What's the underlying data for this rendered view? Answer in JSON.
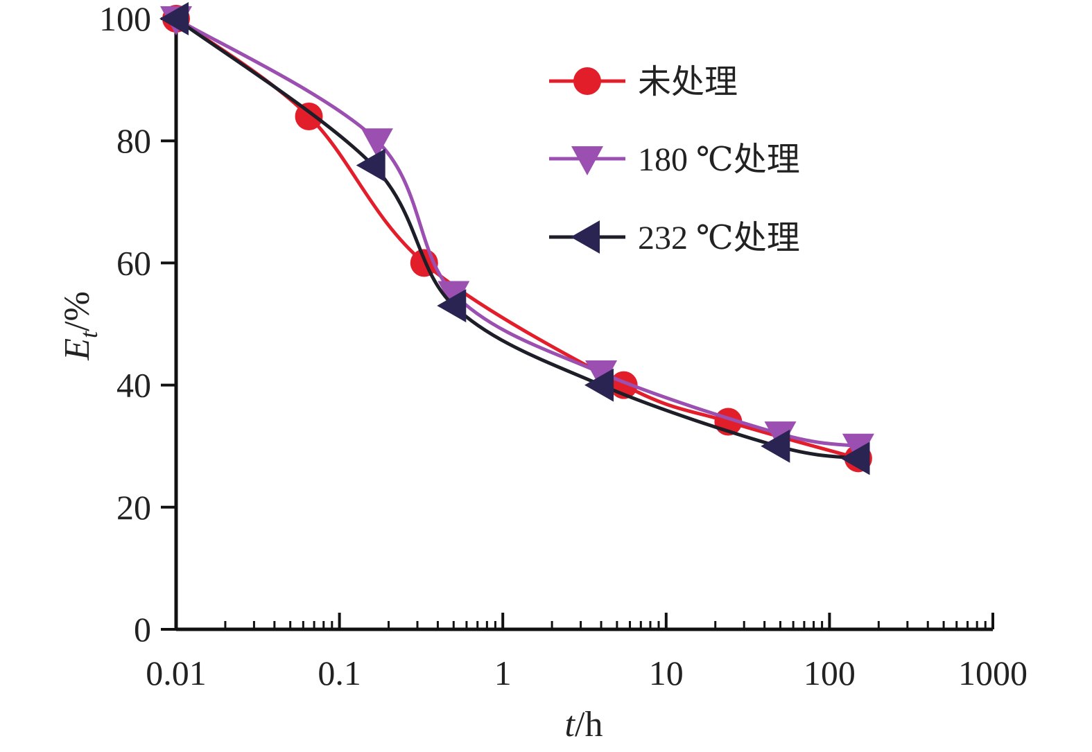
{
  "chart_data": {
    "type": "line",
    "xscale": "log",
    "xlim": [
      0.01,
      1000
    ],
    "ylim": [
      0,
      100
    ],
    "xticks": [
      "0.01",
      "0.1",
      "1",
      "10",
      "100",
      "1000"
    ],
    "yticks": [
      "0",
      "20",
      "40",
      "60",
      "80",
      "100"
    ],
    "xlabel": {
      "italic": "t",
      "rest": "/h"
    },
    "ylabel": {
      "main": "E",
      "sub": "t",
      "rest": "/%"
    },
    "grid": false,
    "legend_position": "top-right",
    "series": [
      {
        "name": "未处理",
        "color": "#e31e2b",
        "marker": "circle",
        "x": [
          0.01,
          0.065,
          0.33,
          5.5,
          24,
          150
        ],
        "y": [
          100,
          84,
          60,
          40,
          34,
          28
        ]
      },
      {
        "name": "180 ℃处理",
        "color": "#9b4fb0",
        "marker": "triangle-down",
        "x": [
          0.01,
          0.17,
          0.5,
          4,
          50,
          150
        ],
        "y": [
          100,
          80,
          55,
          42,
          32,
          30
        ]
      },
      {
        "name": "232 ℃处理",
        "color": "#2a2452",
        "line_color": "#1e1e28",
        "marker": "triangle-left",
        "x": [
          0.01,
          0.16,
          0.5,
          4,
          48,
          148
        ],
        "y": [
          100,
          76,
          53,
          40,
          30,
          28
        ]
      }
    ]
  }
}
